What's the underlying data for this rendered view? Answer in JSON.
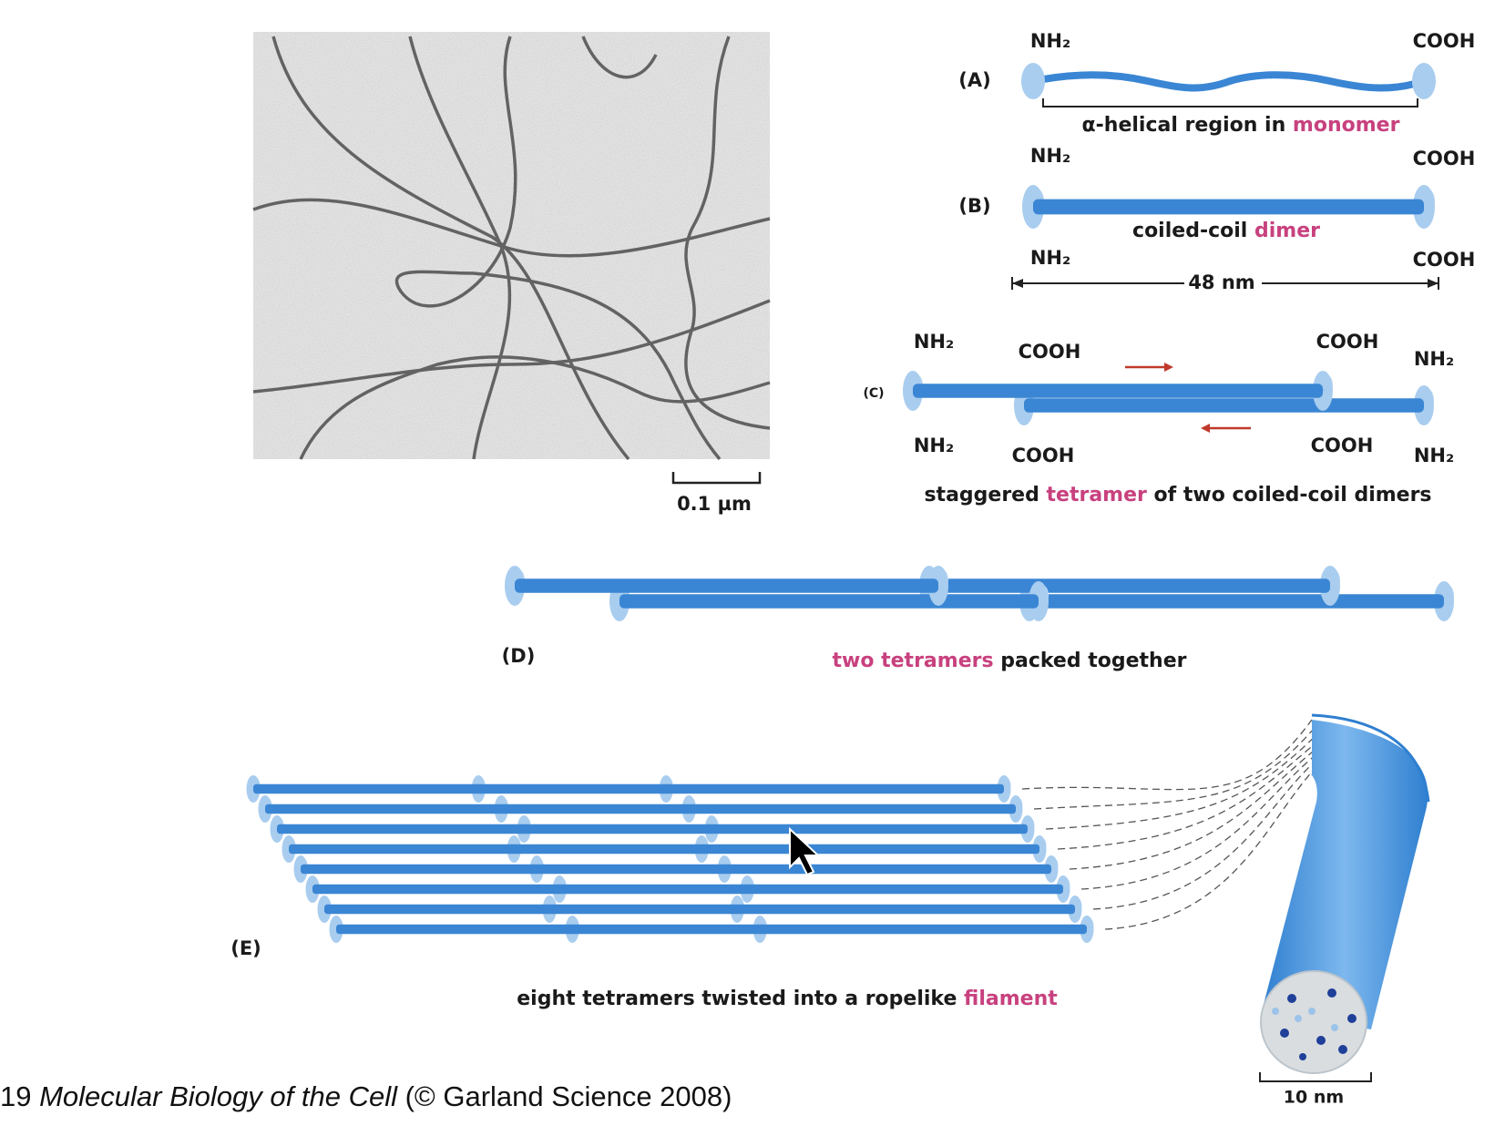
{
  "micrograph": {
    "scale_bar": "0.1 µm"
  },
  "panel_a": {
    "label": "(A)",
    "left_end": "NH₂",
    "right_end": "COOH",
    "caption": "α-helical region in",
    "caption_term": "monomer"
  },
  "panel_b": {
    "label": "(B)",
    "top_left": "NH₂",
    "top_right": "COOH",
    "bottom_left": "NH₂",
    "bottom_right": "COOH",
    "caption": "coiled-coil",
    "caption_term": "dimer",
    "length": "48 nm"
  },
  "panel_c": {
    "label": "(C)",
    "end_labels": [
      "NH₂",
      "COOH",
      "COOH",
      "NH₂",
      "NH₂",
      "COOH",
      "COOH",
      "NH₂"
    ],
    "caption_pre": "staggered",
    "caption_term": "tetramer",
    "caption_post": "of two coiled-coil dimers"
  },
  "panel_d": {
    "label": "(D)",
    "caption_term": "two tetramers",
    "caption_post": "packed together"
  },
  "panel_e": {
    "label": "(E)",
    "caption_pre": "eight tetramers twisted into a ropelike",
    "caption_term": "filament",
    "scale_bar": "10 nm"
  },
  "footer": {
    "figure": "19",
    "book": "Molecular Biology of the Cell",
    "credit": "(© Garland Science 2008)"
  }
}
